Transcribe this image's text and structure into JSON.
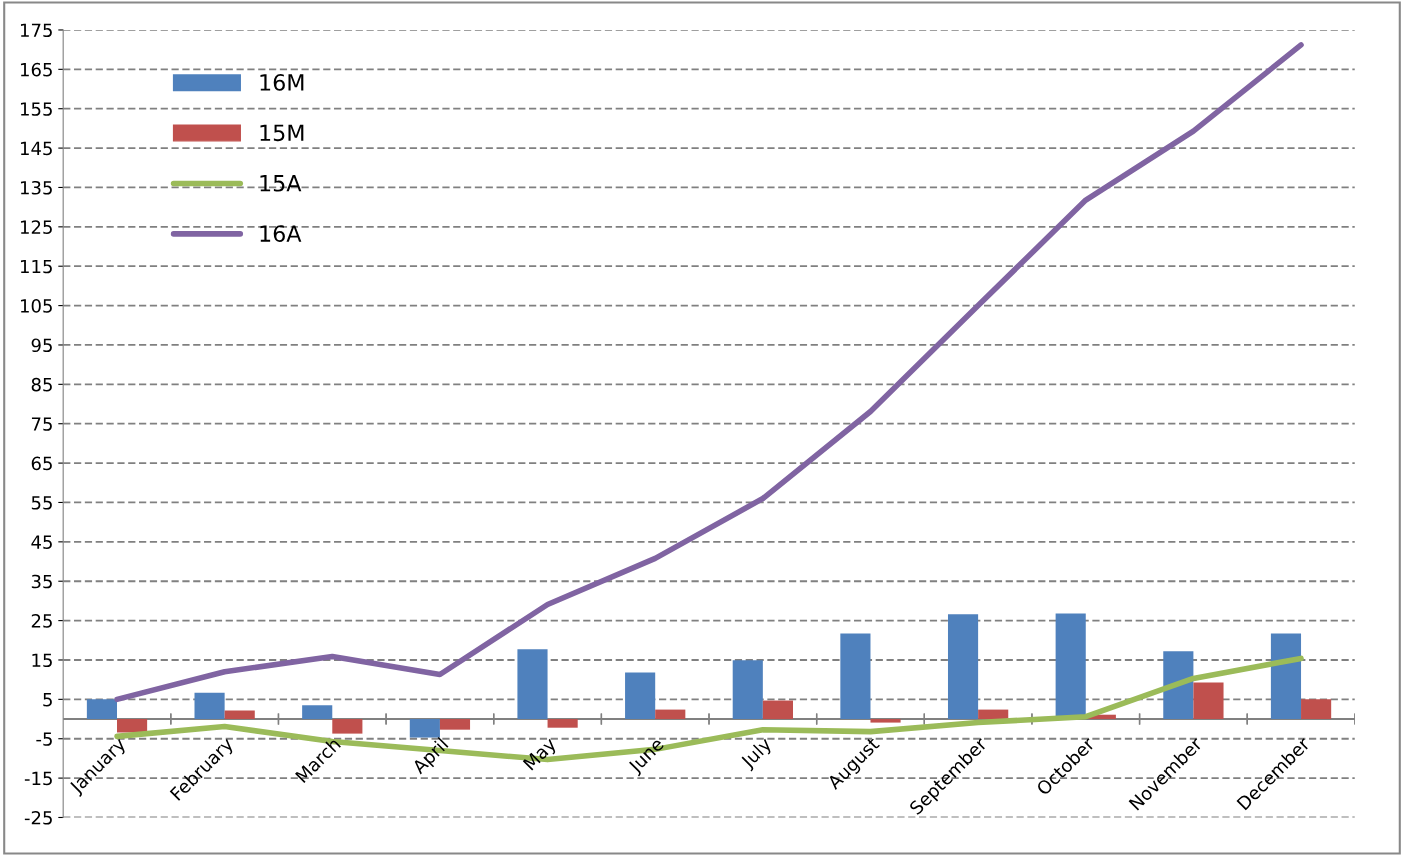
{
  "chart_data": {
    "type": "bar",
    "categories": [
      "January",
      "February",
      "March",
      "April",
      "May",
      "June",
      "July",
      "August",
      "September",
      "October",
      "November",
      "December"
    ],
    "series": [
      {
        "name": "16M",
        "color": "#4f81bd",
        "values": [
          5,
          6.7,
          3.5,
          -4.7,
          17.7,
          11.8,
          14.9,
          21.7,
          26.6,
          26.8,
          17.2,
          21.7
        ]
      },
      {
        "name": "15M",
        "color": "#c0504d",
        "values": [
          -3.4,
          2.2,
          -3.7,
          -2.7,
          -2.2,
          2.4,
          4.7,
          -0.9,
          2.4,
          1.1,
          9.3,
          5
        ]
      },
      {
        "name": "15A",
        "type": "line",
        "color": "#9bbb59",
        "values": [
          -4.4,
          -1.9,
          -5.7,
          -8,
          -10.3,
          -7.7,
          -2.7,
          -3.2,
          -0.9,
          0.6,
          10.3,
          15.4
        ]
      },
      {
        "name": "16A",
        "type": "line",
        "color": "#8064a2",
        "values": [
          5,
          12,
          15.9,
          11.3,
          29.1,
          40.8,
          56,
          78.1,
          105,
          131.8,
          149.3,
          171.2
        ]
      }
    ],
    "ylim": [
      -25,
      175
    ],
    "yticks": [
      -25,
      -15,
      -5,
      5,
      15,
      25,
      35,
      45,
      55,
      65,
      75,
      85,
      95,
      105,
      115,
      125,
      135,
      145,
      155,
      165,
      175
    ],
    "grid": "y",
    "legend": "top left",
    "line_style": "solid",
    "marker": "none"
  }
}
